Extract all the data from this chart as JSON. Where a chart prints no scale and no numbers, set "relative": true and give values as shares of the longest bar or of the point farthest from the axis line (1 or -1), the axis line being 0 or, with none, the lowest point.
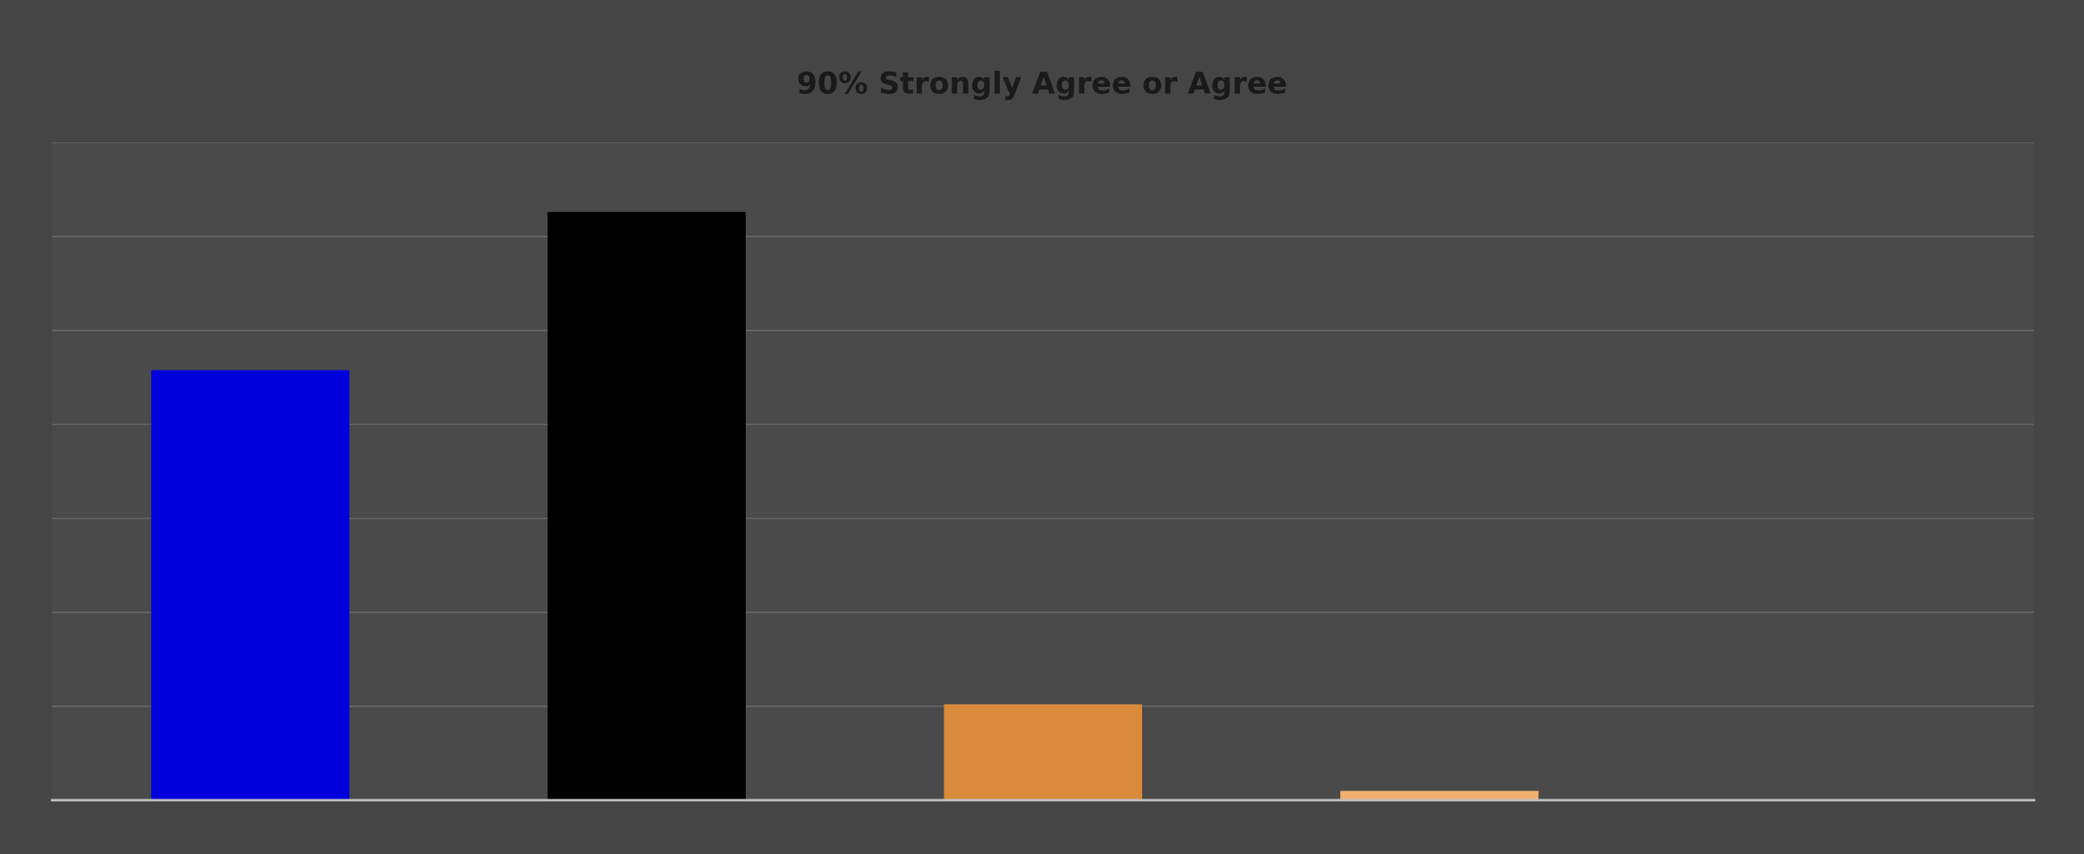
{
  "chart_data": {
    "type": "bar",
    "title": "90% Strongly Agree or Agree",
    "relative": true,
    "grid": "y",
    "categories": [
      null,
      null,
      null,
      null
    ],
    "values": [
      0.731,
      1,
      0.163,
      0.016
    ],
    "colors": [
      "#0000dd",
      "#000000",
      "#d98a3a",
      "#f0b070"
    ]
  }
}
